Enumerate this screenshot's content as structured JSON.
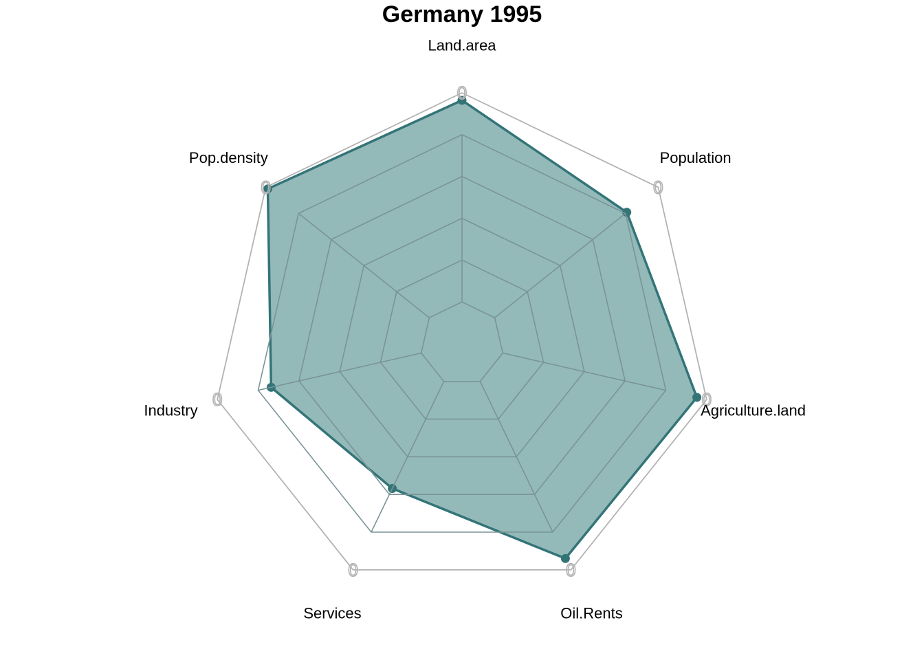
{
  "chart_data": {
    "type": "radar",
    "title": "Germany 1995",
    "axes": [
      "Land.area",
      "Population",
      "Agriculture.land",
      "Oil.Rents",
      "Services",
      "Industry",
      "Pop.density"
    ],
    "series": [
      {
        "values": [
          0.97,
          0.84,
          0.96,
          0.95,
          0.64,
          0.78,
          0.99
        ]
      }
    ],
    "outer_tick_label": "0",
    "range": [
      0,
      1
    ],
    "grid_levels": 6,
    "colors": {
      "fill": "#3d7f80",
      "fill_opacity": 0.55,
      "line": "#337477",
      "grid": "#7a9496",
      "outer_ring": "#b3b3b3"
    }
  }
}
